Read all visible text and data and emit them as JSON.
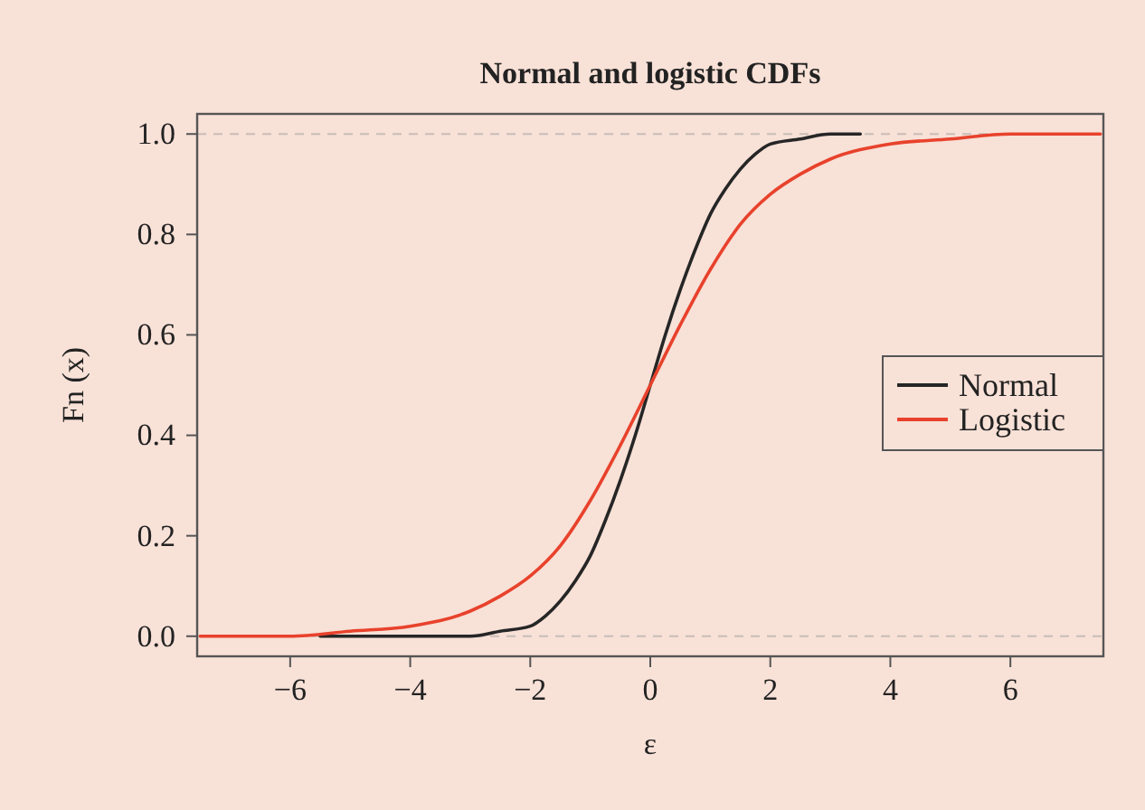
{
  "chart_data": {
    "type": "line",
    "title": "Normal and logistic CDFs",
    "xlabel": "ε",
    "ylabel": "Fn (x)",
    "xlim": [
      -7.55,
      7.55
    ],
    "ylim": [
      -0.04,
      1.04
    ],
    "xticks": [
      {
        "value": -6,
        "label": "−6"
      },
      {
        "value": -4,
        "label": "−4"
      },
      {
        "value": -2,
        "label": "−2"
      },
      0,
      2,
      4,
      6
    ],
    "yticks": [
      {
        "value": 0,
        "label": "0.0"
      },
      0.2,
      0.4,
      0.6,
      0.8,
      {
        "value": 1,
        "label": "1.0"
      }
    ],
    "grid": false,
    "legend": "right",
    "line_style": "solid",
    "marker": "none",
    "ref_lines": [
      {
        "axis": "y",
        "value": 0,
        "color": "#c8bdb8",
        "line_style": "dashed"
      },
      {
        "axis": "y",
        "value": 1,
        "color": "#c8bdb8",
        "line_style": "dashed"
      }
    ],
    "series": [
      {
        "name": "Normal",
        "color": "#262626",
        "x": [
          -5.5,
          -3,
          -2.5,
          -2,
          -1.75,
          -1.5,
          -1.25,
          -1,
          -0.75,
          -0.5,
          -0.25,
          0,
          0.25,
          0.5,
          0.75,
          1,
          1.25,
          1.5,
          1.75,
          2,
          2.5,
          3,
          3.5
        ],
        "values": [
          0,
          0,
          0.01,
          0.02,
          0.04,
          0.07,
          0.11,
          0.16,
          0.23,
          0.31,
          0.4,
          0.5,
          0.6,
          0.69,
          0.77,
          0.84,
          0.89,
          0.93,
          0.96,
          0.98,
          0.99,
          1,
          1
        ]
      },
      {
        "name": "Logistic",
        "color": "#e8422c",
        "x": [
          -7.5,
          -6,
          -5,
          -4,
          -3,
          -2.5,
          -2,
          -1.5,
          -1,
          -0.5,
          0,
          0.5,
          1,
          1.5,
          2,
          2.5,
          3,
          4,
          5,
          6,
          7.5
        ],
        "values": [
          0,
          0,
          0.01,
          0.02,
          0.05,
          0.08,
          0.12,
          0.18,
          0.27,
          0.38,
          0.5,
          0.62,
          0.73,
          0.82,
          0.88,
          0.92,
          0.95,
          0.98,
          0.99,
          1,
          1
        ]
      }
    ]
  }
}
